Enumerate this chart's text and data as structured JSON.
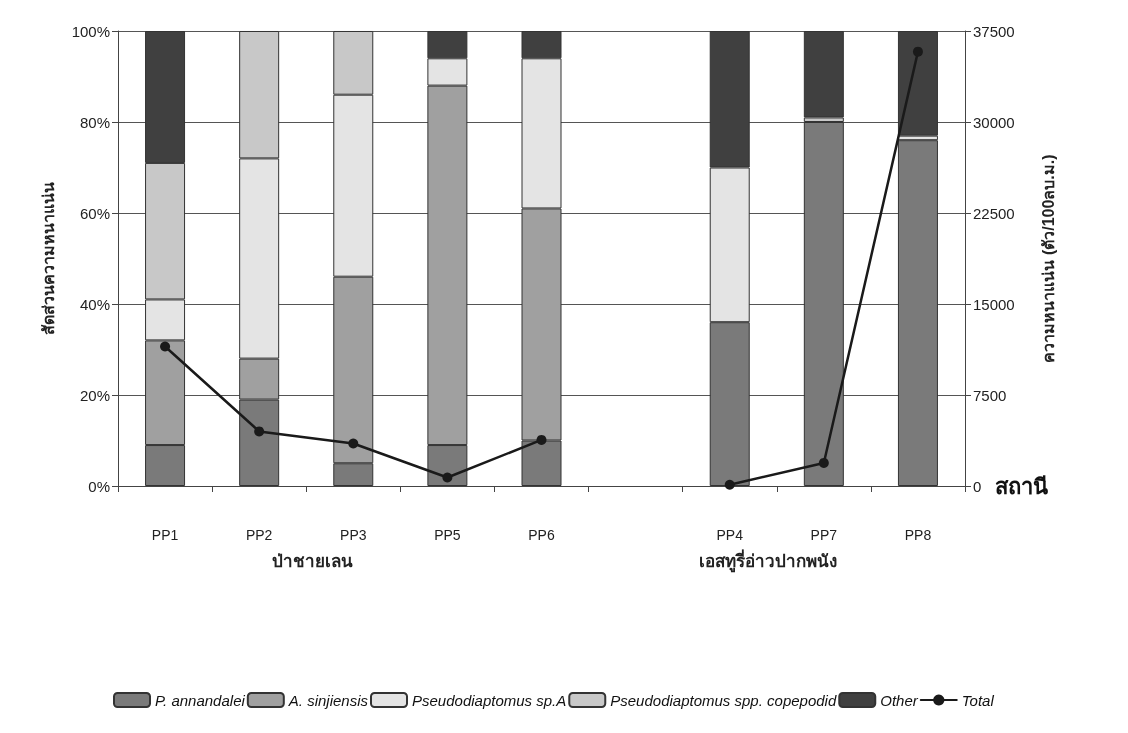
{
  "chart_data": {
    "type": "bar",
    "stacked": true,
    "categories": [
      "PP1",
      "PP2",
      "PP3",
      "PP5",
      "PP6",
      null,
      "PP4",
      "PP7",
      "PP8"
    ],
    "series": [
      {
        "name": "P. annandalei",
        "color": "#7a7a7a",
        "values": [
          9,
          19,
          5,
          9,
          10,
          null,
          36,
          80,
          76
        ]
      },
      {
        "name": "A. sinjiensis",
        "color": "#a0a0a0",
        "values": [
          23,
          9,
          41,
          79,
          51,
          null,
          0,
          0,
          0
        ]
      },
      {
        "name": "Pseudodiaptomus sp.A",
        "color": "#e4e4e4",
        "values": [
          9,
          44,
          40,
          6,
          33,
          null,
          34,
          0,
          1
        ]
      },
      {
        "name": "Pseudodiaptomus spp. copepodid",
        "color": "#c8c8c8",
        "values": [
          30,
          28,
          14,
          0,
          0,
          null,
          0,
          1,
          0
        ]
      },
      {
        "name": "Other",
        "color": "#404040",
        "values": [
          29,
          0,
          0,
          6,
          6,
          null,
          30,
          19,
          23
        ]
      },
      {
        "name": "Total",
        "type": "line",
        "axis": "y2",
        "color": "#1a1a1a",
        "marker": "circle",
        "values": [
          11500,
          4500,
          3500,
          700,
          3800,
          null,
          100,
          1900,
          35800
        ]
      }
    ],
    "ylim": [
      0,
      100
    ],
    "yticks": [
      {
        "value": 0,
        "label": "0%"
      },
      {
        "value": 20,
        "label": "20%"
      },
      {
        "value": 40,
        "label": "40%"
      },
      {
        "value": 60,
        "label": "60%"
      },
      {
        "value": 80,
        "label": "80%"
      },
      {
        "value": 100,
        "label": "100%"
      }
    ],
    "y2lim": [
      0,
      37500
    ],
    "y2ticks": [
      0,
      7500,
      15000,
      22500,
      30000,
      37500
    ],
    "ylabel": "สัดส่วนความหนาแน่น",
    "y2label": "ความหนาแน่น (ตัว/100ลบ.ม.)",
    "xlabel": "สถานี",
    "annotations": [
      "ป่าชายเลน",
      "เอสทูรี่อ่าวปากพนัง"
    ],
    "grid": "y",
    "legend": "bottom"
  }
}
